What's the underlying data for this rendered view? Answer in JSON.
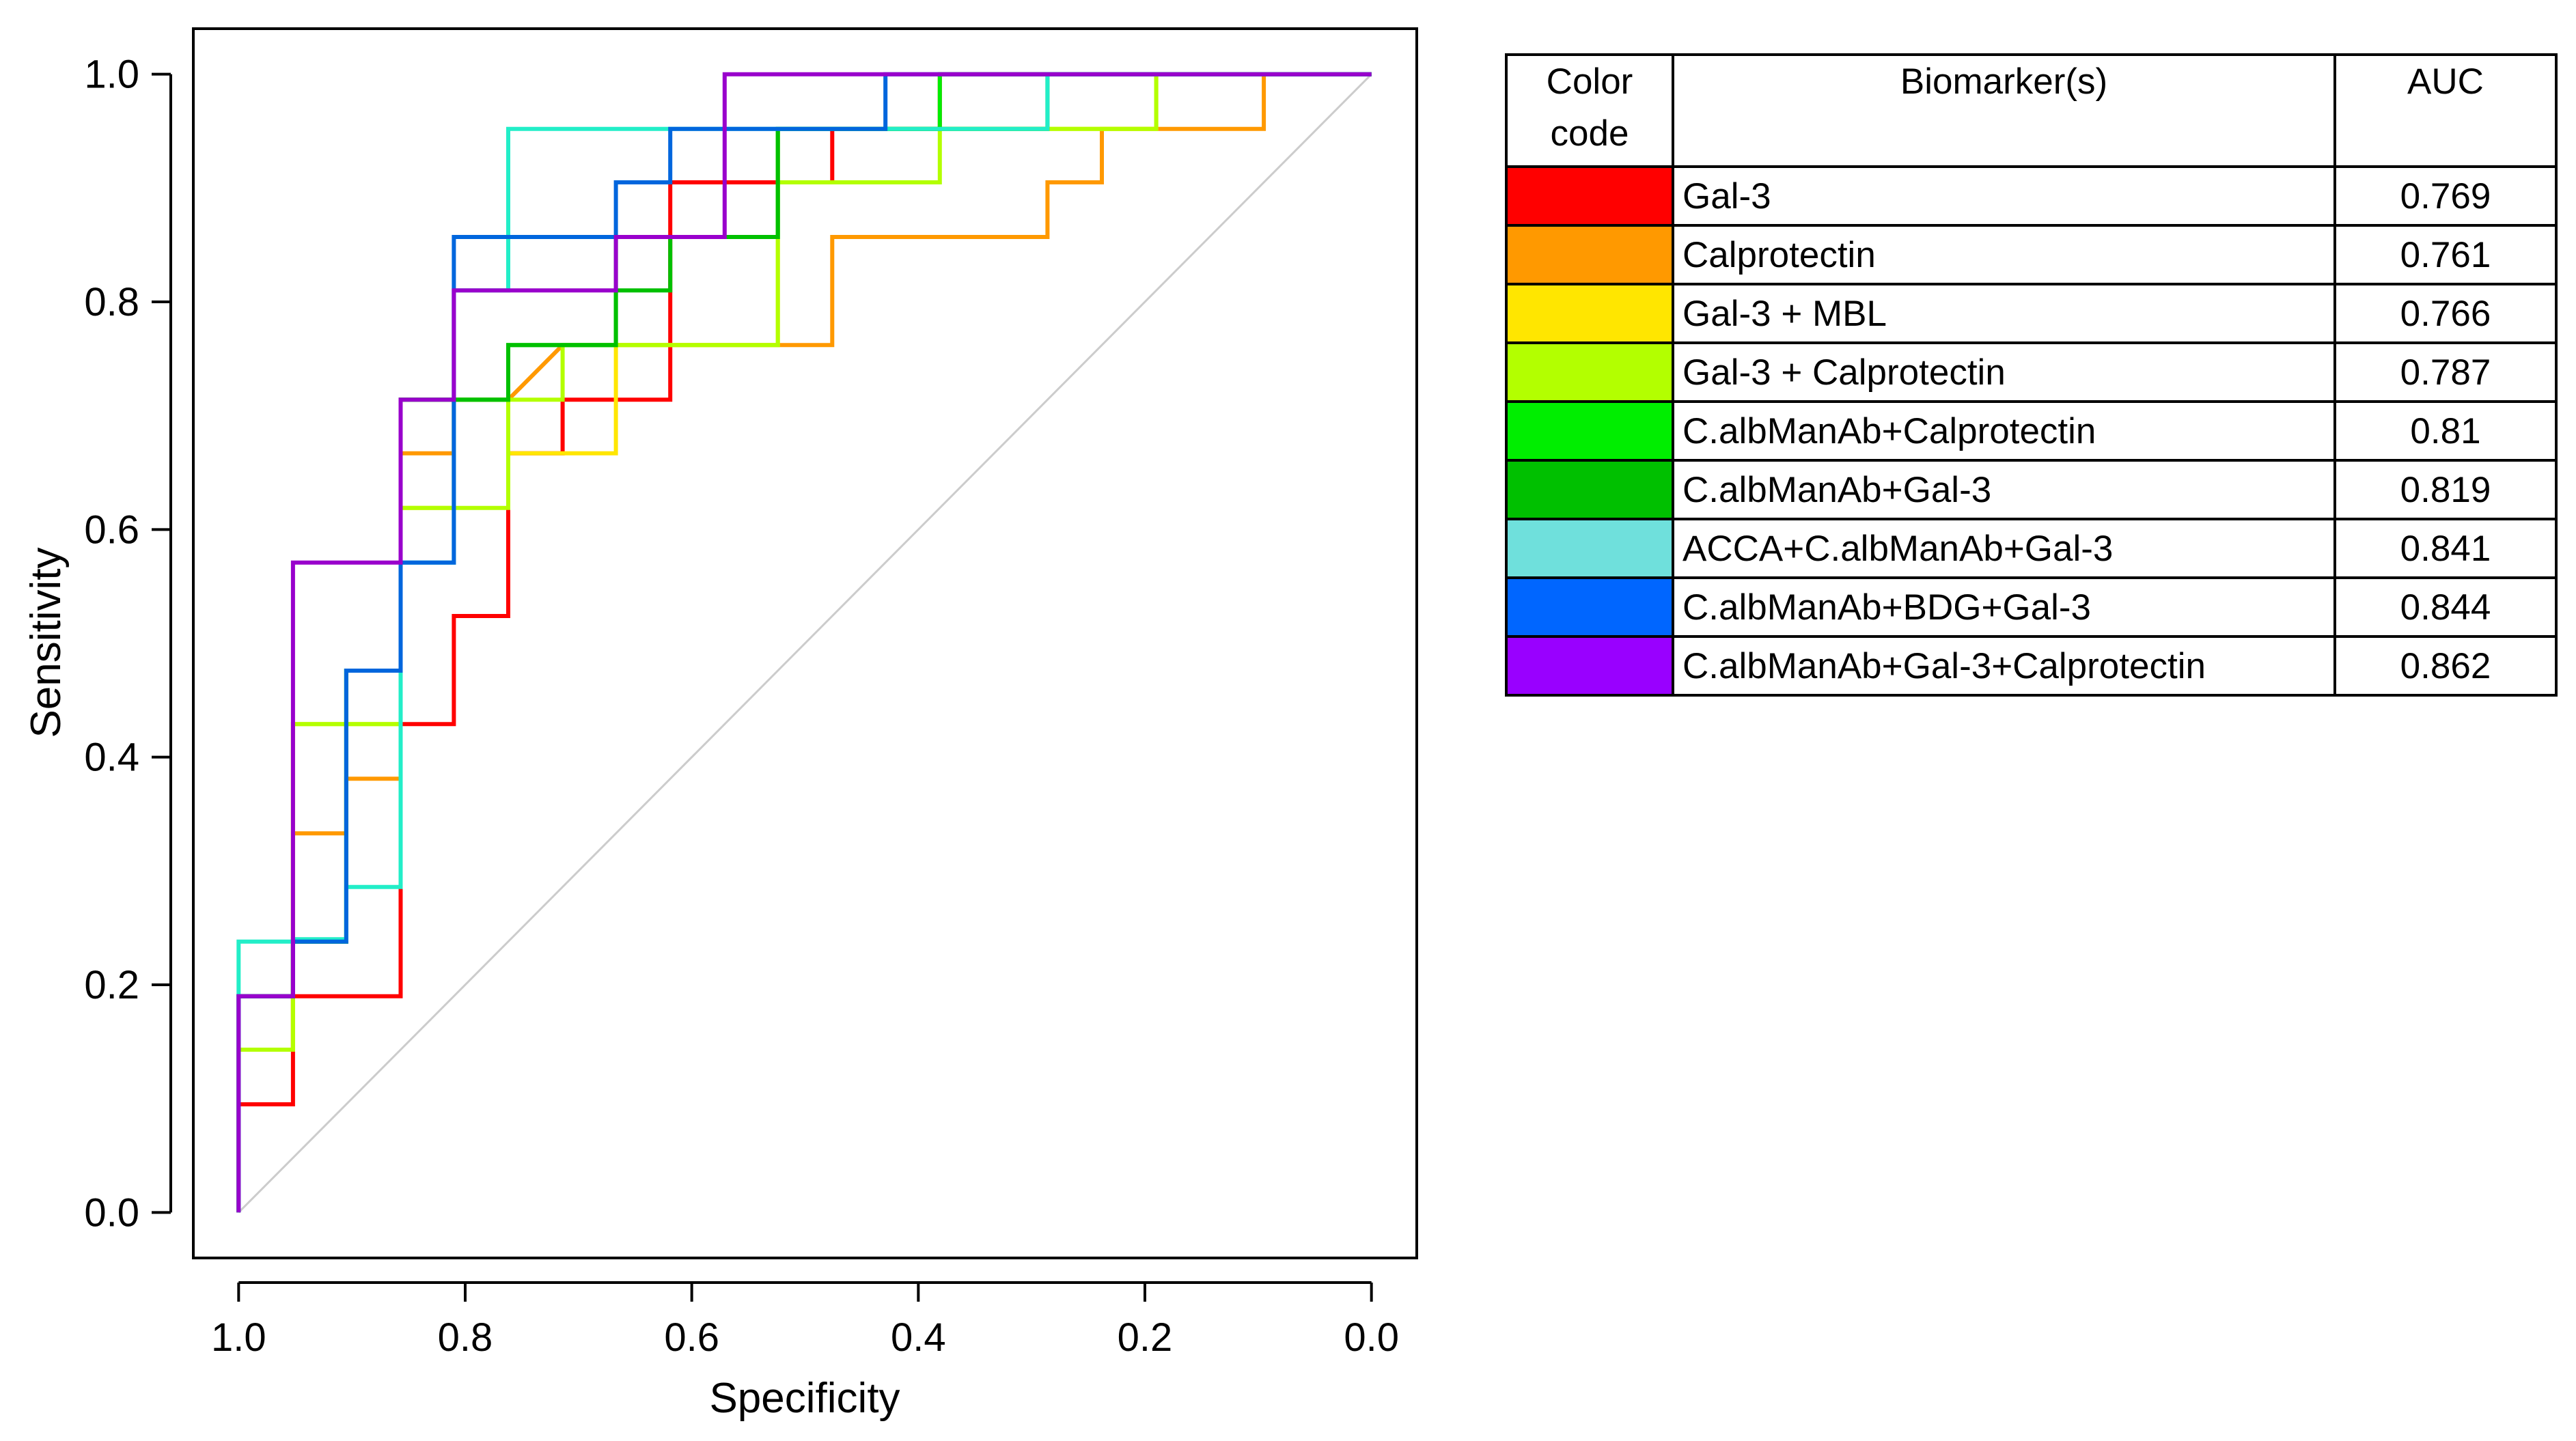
{
  "chart_data": {
    "type": "line",
    "title": "",
    "xlabel": "Specificity",
    "ylabel": "Sensitivity",
    "xlim": [
      1.04,
      -0.04
    ],
    "ylim": [
      -0.04,
      1.04
    ],
    "x_ticks": [
      "1.0",
      "0.8",
      "0.6",
      "0.4",
      "0.2",
      "0.0"
    ],
    "y_ticks": [
      "0.0",
      "0.2",
      "0.4",
      "0.6",
      "0.8",
      "1.0"
    ],
    "reference_line": {
      "from": [
        1.0,
        0.0
      ],
      "to": [
        0.0,
        1.0
      ],
      "color": "#cccccc"
    },
    "series": [
      {
        "name": "Gal-3",
        "color": "#ff0000",
        "auc": "0.769",
        "points": [
          [
            1.0,
            0.0
          ],
          [
            1.0,
            0.095
          ],
          [
            0.952,
            0.095
          ],
          [
            0.952,
            0.19
          ],
          [
            0.857,
            0.19
          ],
          [
            0.857,
            0.429
          ],
          [
            0.81,
            0.429
          ],
          [
            0.81,
            0.524
          ],
          [
            0.762,
            0.524
          ],
          [
            0.762,
            0.667
          ],
          [
            0.714,
            0.667
          ],
          [
            0.714,
            0.714
          ],
          [
            0.619,
            0.714
          ],
          [
            0.619,
            0.905
          ],
          [
            0.476,
            0.905
          ],
          [
            0.476,
            0.952
          ],
          [
            0.381,
            0.952
          ],
          [
            0.381,
            1.0
          ],
          [
            0.0,
            1.0
          ]
        ]
      },
      {
        "name": "Calprotectin",
        "color": "#ff9900",
        "auc": "0.761",
        "points": [
          [
            1.0,
            0.0
          ],
          [
            1.0,
            0.143
          ],
          [
            0.952,
            0.143
          ],
          [
            0.952,
            0.333
          ],
          [
            0.905,
            0.333
          ],
          [
            0.905,
            0.381
          ],
          [
            0.857,
            0.381
          ],
          [
            0.857,
            0.667
          ],
          [
            0.81,
            0.667
          ],
          [
            0.81,
            0.714
          ],
          [
            0.762,
            0.714
          ],
          [
            0.714,
            0.762
          ],
          [
            0.476,
            0.762
          ],
          [
            0.476,
            0.857
          ],
          [
            0.286,
            0.857
          ],
          [
            0.286,
            0.905
          ],
          [
            0.238,
            0.905
          ],
          [
            0.238,
            0.952
          ],
          [
            0.095,
            0.952
          ],
          [
            0.095,
            1.0
          ],
          [
            0.0,
            1.0
          ]
        ]
      },
      {
        "name": "Gal-3 + MBL",
        "color": "#ffe600",
        "auc": "0.766",
        "points": [
          [
            1.0,
            0.0
          ],
          [
            1.0,
            0.143
          ],
          [
            0.952,
            0.143
          ],
          [
            0.952,
            0.429
          ],
          [
            0.857,
            0.429
          ],
          [
            0.857,
            0.619
          ],
          [
            0.81,
            0.619
          ],
          [
            0.81,
            0.714
          ],
          [
            0.762,
            0.714
          ],
          [
            0.762,
            0.667
          ],
          [
            0.667,
            0.667
          ],
          [
            0.667,
            0.762
          ],
          [
            0.524,
            0.762
          ],
          [
            0.524,
            0.952
          ],
          [
            0.19,
            0.952
          ],
          [
            0.19,
            1.0
          ],
          [
            0.0,
            1.0
          ]
        ]
      },
      {
        "name": "Gal-3 + Calprotectin",
        "color": "#b3ff00",
        "auc": "0.787",
        "points": [
          [
            1.0,
            0.0
          ],
          [
            1.0,
            0.143
          ],
          [
            0.952,
            0.143
          ],
          [
            0.952,
            0.429
          ],
          [
            0.857,
            0.429
          ],
          [
            0.857,
            0.619
          ],
          [
            0.762,
            0.619
          ],
          [
            0.762,
            0.714
          ],
          [
            0.714,
            0.714
          ],
          [
            0.714,
            0.762
          ],
          [
            0.524,
            0.762
          ],
          [
            0.524,
            0.905
          ],
          [
            0.381,
            0.905
          ],
          [
            0.381,
            0.952
          ],
          [
            0.19,
            0.952
          ],
          [
            0.19,
            1.0
          ],
          [
            0.0,
            1.0
          ]
        ]
      },
      {
        "name": "C.albManAb+Calprotectin",
        "color": "#00ee00",
        "auc": "0.81",
        "points": [
          [
            1.0,
            0.0
          ],
          [
            1.0,
            0.19
          ],
          [
            0.952,
            0.19
          ],
          [
            0.952,
            0.238
          ],
          [
            0.905,
            0.238
          ],
          [
            0.905,
            0.476
          ],
          [
            0.857,
            0.476
          ],
          [
            0.857,
            0.714
          ],
          [
            0.762,
            0.714
          ],
          [
            0.762,
            0.762
          ],
          [
            0.667,
            0.762
          ],
          [
            0.667,
            0.857
          ],
          [
            0.524,
            0.857
          ],
          [
            0.524,
            0.952
          ],
          [
            0.381,
            0.952
          ],
          [
            0.381,
            1.0
          ],
          [
            0.0,
            1.0
          ]
        ]
      },
      {
        "name": "C.albManAb+Gal-3",
        "color": "#00c000",
        "auc": "0.819",
        "points": [
          [
            1.0,
            0.0
          ],
          [
            1.0,
            0.19
          ],
          [
            0.952,
            0.19
          ],
          [
            0.952,
            0.238
          ],
          [
            0.905,
            0.238
          ],
          [
            0.905,
            0.476
          ],
          [
            0.857,
            0.476
          ],
          [
            0.857,
            0.714
          ],
          [
            0.762,
            0.714
          ],
          [
            0.762,
            0.762
          ],
          [
            0.667,
            0.762
          ],
          [
            0.667,
            0.81
          ],
          [
            0.619,
            0.81
          ],
          [
            0.619,
            0.857
          ],
          [
            0.524,
            0.857
          ],
          [
            0.524,
            0.952
          ],
          [
            0.286,
            0.952
          ],
          [
            0.286,
            1.0
          ],
          [
            0.0,
            1.0
          ]
        ]
      },
      {
        "name": "ACCA+C.albManAb+Gal-3",
        "color": "#22eec8",
        "auc": "0.841",
        "points": [
          [
            1.0,
            0.0
          ],
          [
            1.0,
            0.238
          ],
          [
            0.952,
            0.238
          ],
          [
            0.952,
            0.24
          ],
          [
            0.905,
            0.24
          ],
          [
            0.905,
            0.286
          ],
          [
            0.857,
            0.286
          ],
          [
            0.857,
            0.571
          ],
          [
            0.81,
            0.571
          ],
          [
            0.81,
            0.81
          ],
          [
            0.762,
            0.81
          ],
          [
            0.762,
            0.952
          ],
          [
            0.286,
            0.952
          ],
          [
            0.286,
            1.0
          ],
          [
            0.0,
            1.0
          ]
        ]
      },
      {
        "name": "C.albManAb+BDG+Gal-3",
        "color": "#0066dd",
        "auc": "0.844",
        "points": [
          [
            1.0,
            0.0
          ],
          [
            1.0,
            0.19
          ],
          [
            0.952,
            0.19
          ],
          [
            0.952,
            0.238
          ],
          [
            0.905,
            0.238
          ],
          [
            0.905,
            0.476
          ],
          [
            0.857,
            0.476
          ],
          [
            0.857,
            0.571
          ],
          [
            0.81,
            0.571
          ],
          [
            0.81,
            0.857
          ],
          [
            0.667,
            0.857
          ],
          [
            0.667,
            0.905
          ],
          [
            0.619,
            0.905
          ],
          [
            0.619,
            0.952
          ],
          [
            0.429,
            0.952
          ],
          [
            0.429,
            1.0
          ],
          [
            0.0,
            1.0
          ]
        ]
      },
      {
        "name": "C.albManAb+Gal-3+Calprotectin",
        "color": "#9900cc",
        "auc": "0.862",
        "points": [
          [
            1.0,
            0.0
          ],
          [
            1.0,
            0.19
          ],
          [
            0.952,
            0.19
          ],
          [
            0.952,
            0.571
          ],
          [
            0.857,
            0.571
          ],
          [
            0.857,
            0.714
          ],
          [
            0.81,
            0.714
          ],
          [
            0.81,
            0.81
          ],
          [
            0.667,
            0.81
          ],
          [
            0.667,
            0.857
          ],
          [
            0.571,
            0.857
          ],
          [
            0.571,
            1.0
          ],
          [
            0.0,
            1.0
          ]
        ]
      }
    ]
  },
  "legend": {
    "header_color": "Color code",
    "header_biomarker": "Biomarker(s)",
    "header_auc": "AUC",
    "rows": [
      {
        "color": "#ff0000",
        "name": "Gal-3",
        "auc": "0.769"
      },
      {
        "color": "#ff9900",
        "name": "Calprotectin",
        "auc": "0.761"
      },
      {
        "color": "#ffe600",
        "name": "Gal-3 + MBL",
        "auc": "0.766"
      },
      {
        "color": "#b3ff00",
        "name": "Gal-3 + Calprotectin",
        "auc": "0.787"
      },
      {
        "color": "#00ee00",
        "name": "C.albManAb+Calprotectin",
        "auc": "0.81"
      },
      {
        "color": "#00c000",
        "name": "C.albManAb+Gal-3",
        "auc": "0.819"
      },
      {
        "color": "#6fe0dc",
        "name": "ACCA+C.albManAb+Gal-3",
        "auc": "0.841"
      },
      {
        "color": "#0066ff",
        "name": "C.albManAb+BDG+Gal-3",
        "auc": "0.844"
      },
      {
        "color": "#9900ff",
        "name": "C.albManAb+Gal-3+Calprotectin",
        "auc": "0.862"
      }
    ]
  }
}
